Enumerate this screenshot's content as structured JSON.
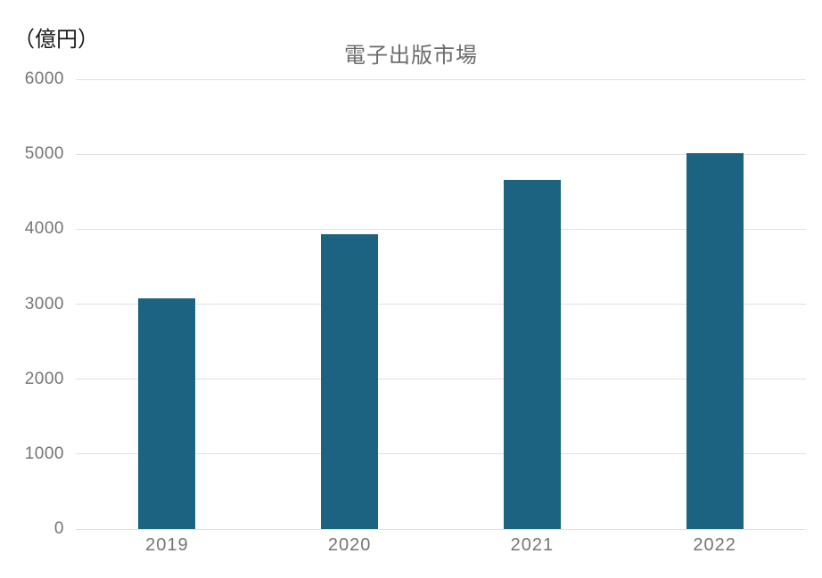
{
  "unit_label": "（億円）",
  "chart_data": {
    "type": "bar",
    "title": "電子出版市場",
    "xlabel": "",
    "ylabel": "（億円）",
    "categories": [
      "2019",
      "2020",
      "2021",
      "2022"
    ],
    "values": [
      3072,
      3931,
      4662,
      5013
    ],
    "ylim": [
      0,
      6000
    ],
    "yticks": [
      0,
      1000,
      2000,
      3000,
      4000,
      5000,
      6000
    ],
    "grid": "horizontal",
    "legend": "none",
    "colors": {
      "bar": "#1b6380",
      "gridline": "#e0e0e0",
      "tick_label": "#757575",
      "title": "#6b6b6b",
      "unit_label": "#1a1a1a",
      "background": "#ffffff"
    }
  }
}
